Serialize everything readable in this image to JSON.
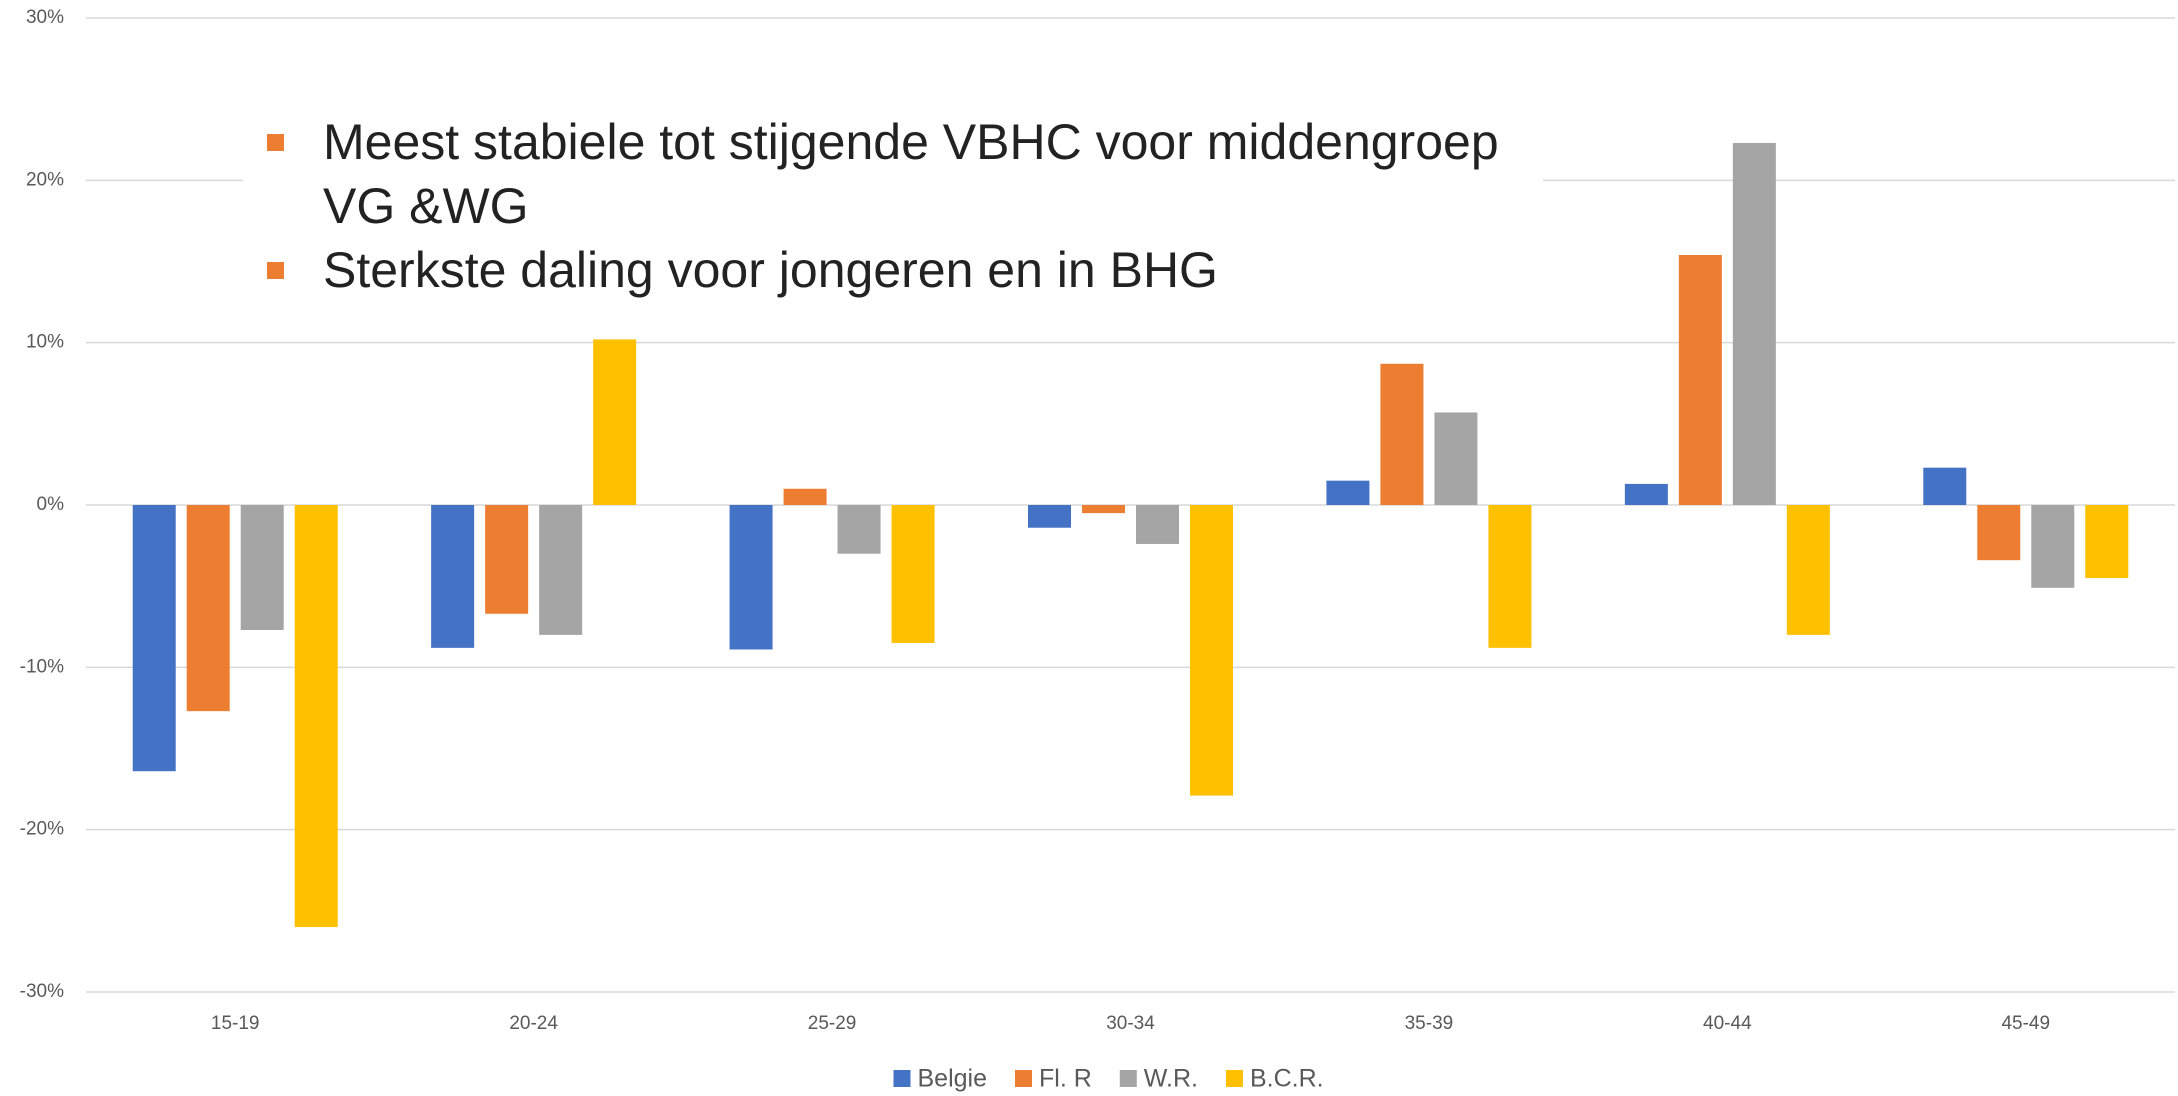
{
  "chart_data": {
    "type": "bar",
    "categories": [
      "15-19",
      "20-24",
      "25-29",
      "30-34",
      "35-39",
      "40-44",
      "45-49"
    ],
    "series": [
      {
        "name": "Belgie",
        "color": "#4472c4",
        "values": [
          -16.4,
          -8.8,
          -8.9,
          -1.4,
          1.5,
          1.3,
          2.3
        ]
      },
      {
        "name": "Fl. R",
        "color": "#ed7d31",
        "values": [
          -12.7,
          -6.7,
          1.0,
          -0.5,
          8.7,
          15.4,
          -3.4
        ]
      },
      {
        "name": "W.R.",
        "color": "#a5a5a5",
        "values": [
          -7.7,
          -8.0,
          -3.0,
          -2.4,
          5.7,
          22.3,
          -5.1
        ]
      },
      {
        "name": "B.C.R.",
        "color": "#ffc000",
        "values": [
          -26.0,
          10.2,
          -8.5,
          -17.9,
          -8.8,
          -8.0,
          -4.5
        ]
      }
    ],
    "ylim": [
      -30,
      30
    ],
    "yticks": [
      {
        "value": -30,
        "label": "-30%"
      },
      {
        "value": -20,
        "label": "-20%"
      },
      {
        "value": -10,
        "label": "-10%"
      },
      {
        "value": 0,
        "label": "0%"
      },
      {
        "value": 10,
        "label": "10%"
      },
      {
        "value": 20,
        "label": "20%"
      },
      {
        "value": 30,
        "label": "30%"
      }
    ],
    "grid": true,
    "legend": "bottom",
    "annotations": [
      "Meest stabiele tot stijgende VBHC voor middengroep VG &WG",
      "Sterkste daling voor jongeren en in BHG"
    ],
    "annotation_color": "#ed7d31"
  }
}
